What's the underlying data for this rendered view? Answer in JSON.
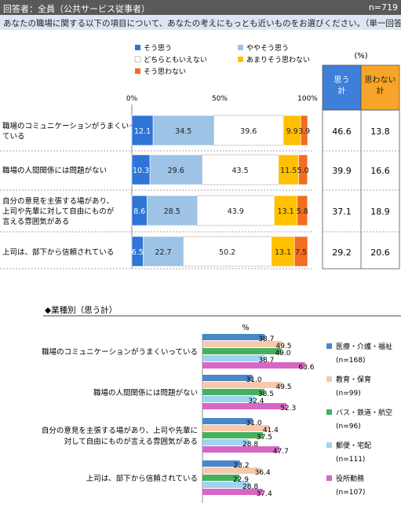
{
  "header": {
    "respondent": "回答者：全員（公共サービス従事者）",
    "n": "n=719"
  },
  "question": "あなたの職場に関する以下の項目について、あなたの考えにもっとも近いものをお選びください。（単一回答）",
  "chart_data": [
    {
      "type": "bar",
      "stacked": true,
      "orientation": "horizontal",
      "percent_label": "(%)",
      "xlim": [
        0,
        100
      ],
      "x_ticks": [
        "0%",
        "50%",
        "100%"
      ],
      "categories": [
        "職場のコミュニケーションがうまくいっている",
        "職場の人間関係には問題がない",
        "自分の意見を主張する場があり、上司や先輩に対して自由にものが言える雰囲気がある",
        "上司は、部下から信頼されている"
      ],
      "category_lines": [
        [
          "職場のコミュニケーションがうまくいっ",
          "ている"
        ],
        [
          "職場の人間関係には問題がない"
        ],
        [
          "自分の意見を主張する場があり、",
          "上司や先輩に対して自由にものが",
          "言える雰囲気がある"
        ],
        [
          "上司は、部下から信頼されている"
        ]
      ],
      "series": [
        {
          "name": "そう思う",
          "color": "#2e75d6",
          "values": [
            12.1,
            10.3,
            8.6,
            6.5
          ]
        },
        {
          "name": "ややそう思う",
          "color": "#9dc3e6",
          "values": [
            34.5,
            29.6,
            28.5,
            22.7
          ]
        },
        {
          "name": "どちらともいえない",
          "color": "#ffffff",
          "values": [
            39.6,
            43.5,
            43.9,
            50.2
          ]
        },
        {
          "name": "あまりそう思わない",
          "color": "#ffc000",
          "values": [
            9.9,
            11.5,
            13.1,
            13.1
          ]
        },
        {
          "name": "そう思わない",
          "color": "#f36c21",
          "values": [
            3.9,
            5.0,
            5.8,
            7.5
          ]
        }
      ],
      "summary_columns": [
        {
          "header": [
            "思う",
            "計"
          ],
          "color": "#3d7fd9",
          "values": [
            "46.6",
            "39.9",
            "37.1",
            "29.2"
          ]
        },
        {
          "header": [
            "思わない",
            "計"
          ],
          "color": "#f7a528",
          "values": [
            "13.8",
            "16.6",
            "18.9",
            "20.6"
          ]
        }
      ]
    },
    {
      "type": "bar",
      "orientation": "horizontal",
      "title": "◆業種別（思う計）",
      "unit": "%",
      "categories": [
        "職場のコミュニケーションがうまくいっている",
        "職場の人間関係には問題がない",
        "自分の意見を主張する場があり、上司や先輩に対して自由にものが言える雰囲気がある",
        "上司は、部下から信頼されている"
      ],
      "category_lines": [
        [
          "職場のコミュニケーションがうまくいっている"
        ],
        [
          "職場の人間関係には問題がない"
        ],
        [
          "自分の意見を主張する場があり、上司や先輩に",
          "対して自由にものが言える雰囲気がある"
        ],
        [
          "上司は、部下から信頼されている"
        ]
      ],
      "series": [
        {
          "name": "医療・介護・福祉",
          "n": "(n=168)",
          "color": "#4a86c9",
          "values": [
            38.7,
            31.0,
            31.0,
            23.2
          ]
        },
        {
          "name": "教育・保育",
          "n": "(n=99)",
          "color": "#f8c8ab",
          "values": [
            49.5,
            49.5,
            41.4,
            36.4
          ]
        },
        {
          "name": "バス・鉄道・航空",
          "n": "(n=96)",
          "color": "#45b15d",
          "values": [
            49.0,
            38.5,
            37.5,
            22.9
          ]
        },
        {
          "name": "郵便・宅配",
          "n": "(n=111)",
          "color": "#9ed3f4",
          "values": [
            38.7,
            32.4,
            28.8,
            28.8
          ]
        },
        {
          "name": "役所勤務",
          "n": "(n=107)",
          "color": "#d866c5",
          "values": [
            63.6,
            52.3,
            47.7,
            37.4
          ]
        }
      ]
    }
  ]
}
